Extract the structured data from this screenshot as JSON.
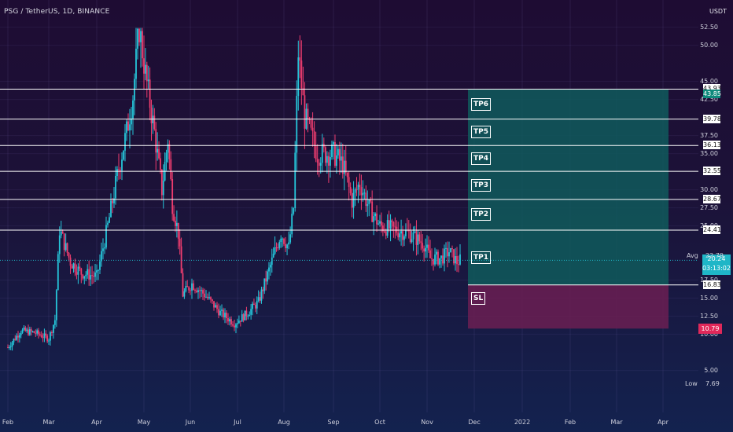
{
  "header": {
    "title": "PSG / TetherUS, 1D, BINANCE",
    "unit": "USDT"
  },
  "chart_data": {
    "type": "candlestick",
    "ylim": [
      4.0,
      52.5
    ],
    "y_ticks": [
      "52.50",
      "50.00",
      "45.00",
      "42.50",
      "37.50",
      "35.00",
      "30.00",
      "27.50",
      "25.00",
      "17.50",
      "15.00",
      "12.50",
      "10.00",
      "5.00"
    ],
    "x_ticks": [
      "Feb",
      "Mar",
      "Apr",
      "May",
      "Jun",
      "Jul",
      "Aug",
      "Sep",
      "Oct",
      "Nov",
      "Dec",
      "2022",
      "Feb",
      "Mar",
      "Apr"
    ],
    "price_series": [
      [
        "2021-02-01",
        8.2
      ],
      [
        "2021-02-10",
        10.5
      ],
      [
        "2021-02-20",
        10.2
      ],
      [
        "2021-03-01",
        9.4
      ],
      [
        "2021-03-05",
        12.0
      ],
      [
        "2021-03-08",
        24.5
      ],
      [
        "2021-03-15",
        20.0
      ],
      [
        "2021-03-22",
        18.5
      ],
      [
        "2021-04-01",
        18.0
      ],
      [
        "2021-04-08",
        25.0
      ],
      [
        "2021-04-15",
        33.0
      ],
      [
        "2021-04-20",
        38.0
      ],
      [
        "2021-04-24",
        43.0
      ],
      [
        "2021-04-28",
        52.5
      ],
      [
        "2021-05-02",
        46.0
      ],
      [
        "2021-05-08",
        38.0
      ],
      [
        "2021-05-13",
        30.0
      ],
      [
        "2021-05-17",
        37.0
      ],
      [
        "2021-05-20",
        28.0
      ],
      [
        "2021-05-24",
        24.0
      ],
      [
        "2021-05-27",
        15.5
      ],
      [
        "2021-06-02",
        17.0
      ],
      [
        "2021-06-10",
        15.5
      ],
      [
        "2021-06-20",
        13.0
      ],
      [
        "2021-06-29",
        11.5
      ],
      [
        "2021-07-08",
        13.0
      ],
      [
        "2021-07-15",
        14.5
      ],
      [
        "2021-07-23",
        19.5
      ],
      [
        "2021-07-30",
        24.0
      ],
      [
        "2021-08-04",
        22.0
      ],
      [
        "2021-08-07",
        27.5
      ],
      [
        "2021-08-10",
        49.0
      ],
      [
        "2021-08-14",
        40.0
      ],
      [
        "2021-08-22",
        35.0
      ],
      [
        "2021-09-01",
        35.0
      ],
      [
        "2021-09-07",
        33.5
      ],
      [
        "2021-09-13",
        28.5
      ],
      [
        "2021-09-18",
        31.0
      ],
      [
        "2021-09-24",
        27.5
      ],
      [
        "2021-10-01",
        25.0
      ],
      [
        "2021-10-10",
        24.5
      ],
      [
        "2021-10-20",
        24.0
      ],
      [
        "2021-10-30",
        22.5
      ],
      [
        "2021-11-03",
        20.5
      ],
      [
        "2021-11-10",
        20.5
      ],
      [
        "2021-11-15",
        21.5
      ],
      [
        "2021-11-20",
        20.0
      ],
      [
        "2021-11-22",
        20.24
      ]
    ],
    "targets": [
      {
        "label": "TP6",
        "price": "43.93"
      },
      {
        "label": "TP5",
        "price": "39.78"
      },
      {
        "label": "TP4",
        "price": "36.13"
      },
      {
        "label": "TP3",
        "price": "32.55"
      },
      {
        "label": "TP2",
        "price": "28.67"
      },
      {
        "label": "TP1",
        "price": "24.41"
      }
    ],
    "entry_price": "16.83",
    "stop_loss_label": "SL",
    "stop_loss_price": "10.79",
    "target_zone_price": "43.85",
    "current_price": "20.24",
    "countdown": "03:13:02",
    "avg_label": "Avg",
    "avg_value": "22.79",
    "low_label": "Low",
    "low_value": "7.69",
    "colors": {
      "up": "#26c6da",
      "down": "#ef3d6f",
      "profit": "#0f5a5c",
      "loss": "#6b1f52",
      "current": "#1fb6c7",
      "stop": "#e0285a"
    }
  }
}
